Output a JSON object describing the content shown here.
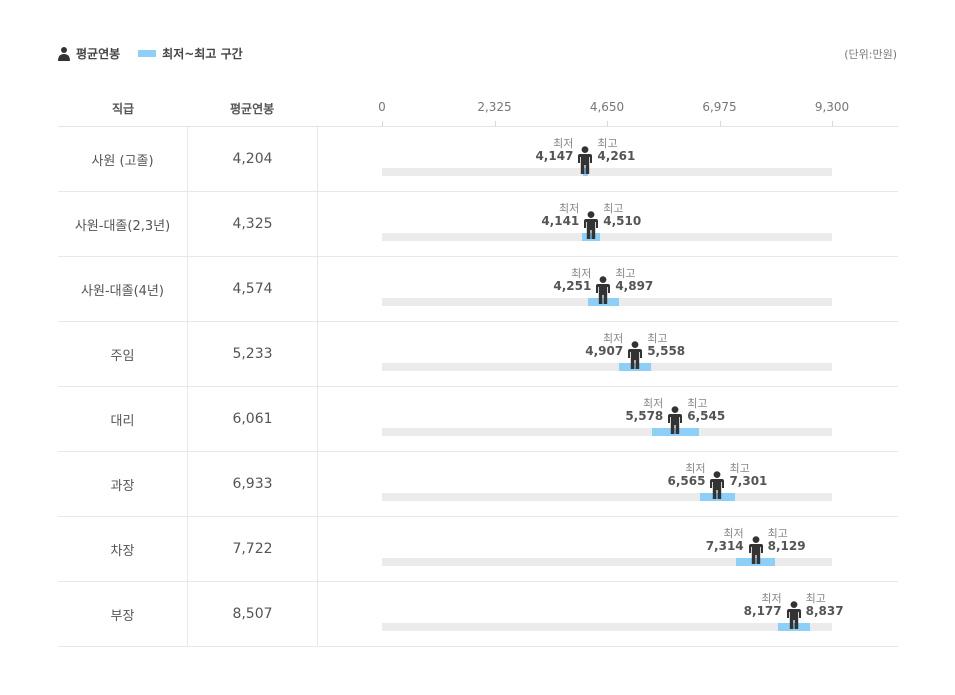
{
  "legend": {
    "avg_label": "평균연봉",
    "range_label": "최저~최고 구간"
  },
  "unit": "(단위:만원)",
  "columns": {
    "rank": "직급",
    "avg": "평균연봉"
  },
  "labels": {
    "min": "최저",
    "max": "최고"
  },
  "colors": {
    "range": "#8ecff7",
    "track": "#ebebeb",
    "person": "#333333"
  },
  "chart_data": {
    "type": "bar",
    "x_ticks": [
      "0",
      "2,325",
      "4,650",
      "6,975",
      "9,300"
    ],
    "xlim": [
      0,
      9300
    ],
    "categories": [
      "사원 (고졸)",
      "사원-대졸(2,3년)",
      "사원-대졸(4년)",
      "주임",
      "대리",
      "과장",
      "차장",
      "부장"
    ],
    "rows": [
      {
        "rank": "사원 (고졸)",
        "avg": 4204,
        "avg_text": "4,204",
        "min": 4147,
        "min_text": "4,147",
        "max": 4261,
        "max_text": "4,261"
      },
      {
        "rank": "사원-대졸(2,3년)",
        "avg": 4325,
        "avg_text": "4,325",
        "min": 4141,
        "min_text": "4,141",
        "max": 4510,
        "max_text": "4,510"
      },
      {
        "rank": "사원-대졸(4년)",
        "avg": 4574,
        "avg_text": "4,574",
        "min": 4251,
        "min_text": "4,251",
        "max": 4897,
        "max_text": "4,897"
      },
      {
        "rank": "주임",
        "avg": 5233,
        "avg_text": "5,233",
        "min": 4907,
        "min_text": "4,907",
        "max": 5558,
        "max_text": "5,558"
      },
      {
        "rank": "대리",
        "avg": 6061,
        "avg_text": "6,061",
        "min": 5578,
        "min_text": "5,578",
        "max": 6545,
        "max_text": "6,545"
      },
      {
        "rank": "과장",
        "avg": 6933,
        "avg_text": "6,933",
        "min": 6565,
        "min_text": "6,565",
        "max": 7301,
        "max_text": "7,301"
      },
      {
        "rank": "차장",
        "avg": 7722,
        "avg_text": "7,722",
        "min": 7314,
        "min_text": "7,314",
        "max": 8129,
        "max_text": "8,129"
      },
      {
        "rank": "부장",
        "avg": 8507,
        "avg_text": "8,507",
        "min": 8177,
        "min_text": "8,177",
        "max": 8837,
        "max_text": "8,837"
      }
    ]
  }
}
